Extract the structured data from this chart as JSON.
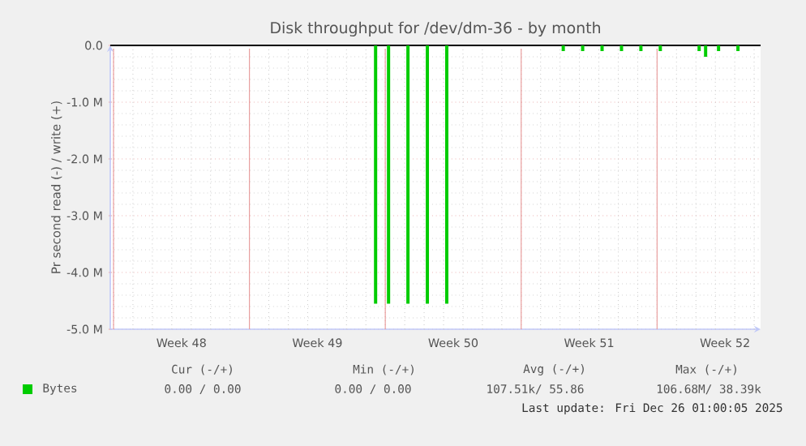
{
  "chart_data": {
    "type": "bar",
    "title": "Disk throughput for /dev/dm-36 - by month",
    "ylabel": "Pr second read (-) / write (+)",
    "categories": [
      null,
      null,
      null,
      null,
      null,
      null,
      null,
      null,
      null,
      null,
      null,
      null,
      null,
      null,
      null,
      null,
      null,
      null,
      null,
      null,
      null,
      null,
      "Week 48",
      null,
      null,
      null,
      null,
      null,
      null,
      null,
      null,
      null,
      null,
      null,
      null,
      null,
      null,
      null,
      null,
      null,
      null,
      null,
      null,
      null,
      null,
      null,
      null,
      null,
      null,
      null,
      null,
      null,
      null,
      null,
      null,
      null,
      null,
      null,
      null,
      null,
      null,
      null,
      null,
      null,
      "Week 49",
      null,
      null,
      null,
      null,
      null,
      null,
      null,
      null,
      null,
      null,
      null,
      null,
      null,
      null,
      null,
      null,
      null,
      null,
      null,
      null,
      null,
      null,
      null,
      null,
      null,
      null,
      null,
      null,
      null,
      null,
      null,
      null,
      null,
      null,
      null,
      null,
      null,
      null,
      null,
      null,
      null,
      "Week 50",
      null,
      null,
      null,
      null,
      null,
      null,
      null,
      null,
      null,
      null,
      null,
      null,
      null,
      null,
      null,
      null,
      null,
      null,
      null,
      null,
      null,
      null,
      null,
      null,
      null,
      null,
      null,
      null,
      null,
      null,
      null,
      null,
      null,
      null,
      null,
      null,
      null,
      null,
      null,
      null,
      null,
      "Week 51",
      null,
      null,
      null,
      null,
      null,
      null,
      null,
      null,
      null,
      null,
      null,
      null,
      null,
      null,
      null,
      null,
      null,
      null,
      null,
      null,
      null,
      null,
      null,
      null,
      null,
      null,
      null,
      null,
      null,
      null,
      null,
      null,
      null,
      null,
      null,
      null,
      null,
      null,
      null,
      null,
      null,
      "Week 52",
      null,
      null,
      null,
      null,
      null,
      null,
      null,
      null,
      null,
      null,
      null
    ],
    "ylim": [
      -5,
      0
    ],
    "yticks": [
      {
        "value": -5,
        "label": "-5.0 M"
      },
      {
        "value": -4,
        "label": "-4.0 M"
      },
      {
        "value": -3,
        "label": "-3.0 M"
      },
      {
        "value": -2,
        "label": "-2.0 M"
      },
      {
        "value": -1,
        "label": "-1.0 M"
      },
      {
        "value": 0,
        "label": "0.0"
      }
    ],
    "grid": true,
    "legend": "bottom",
    "ref_lines": [
      {
        "axis": "y",
        "value": 0,
        "color": "#000000"
      }
    ],
    "series": [
      {
        "name": "Bytes",
        "color": "#00cc00",
        "values": [
          null,
          null,
          null,
          null,
          null,
          null,
          null,
          null,
          null,
          null,
          null,
          null,
          null,
          null,
          null,
          null,
          null,
          null,
          null,
          null,
          null,
          null,
          null,
          null,
          null,
          null,
          null,
          null,
          null,
          null,
          null,
          null,
          null,
          null,
          null,
          null,
          null,
          null,
          null,
          null,
          null,
          null,
          null,
          null,
          null,
          null,
          null,
          null,
          null,
          null,
          null,
          null,
          null,
          null,
          null,
          null,
          null,
          null,
          null,
          null,
          null,
          null,
          null,
          null,
          null,
          null,
          null,
          null,
          null,
          null,
          null,
          null,
          null,
          null,
          null,
          null,
          null,
          null,
          null,
          null,
          null,
          null,
          -4.55,
          null,
          null,
          null,
          -4.55,
          null,
          null,
          null,
          null,
          null,
          -4.55,
          null,
          null,
          null,
          null,
          null,
          -4.55,
          null,
          null,
          null,
          null,
          null,
          -4.55,
          null,
          null,
          null,
          null,
          null,
          null,
          null,
          null,
          null,
          null,
          null,
          null,
          null,
          null,
          null,
          null,
          null,
          null,
          null,
          null,
          null,
          null,
          null,
          null,
          null,
          null,
          null,
          null,
          null,
          null,
          null,
          null,
          null,
          null,
          null,
          -0.1,
          null,
          null,
          null,
          null,
          null,
          -0.1,
          null,
          null,
          null,
          null,
          null,
          -0.1,
          null,
          null,
          null,
          null,
          null,
          -0.1,
          null,
          null,
          null,
          null,
          null,
          -0.1,
          null,
          null,
          null,
          null,
          null,
          -0.1,
          null,
          null,
          null,
          null,
          null,
          null,
          null,
          null,
          null,
          null,
          null,
          -0.1,
          null,
          -0.2,
          null,
          null,
          null,
          -0.1,
          null,
          null,
          null,
          null,
          null,
          -0.1,
          null,
          null,
          null,
          null,
          null,
          null,
          null
        ]
      }
    ],
    "annotations": [
      "Cur (-/+)",
      "Min (-/+)",
      "Avg (-/+)",
      "Max (-/+)",
      "0.00 / 0.00",
      "0.00 / 0.00",
      "107.51k/ 55.86",
      "106.68M/ 38.39k",
      "Last update: Fri Dec 26 01:00:05 2025"
    ]
  }
}
